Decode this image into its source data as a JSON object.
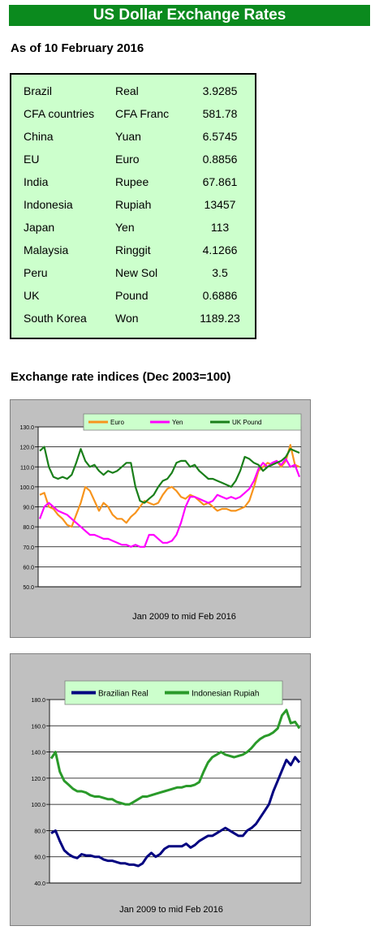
{
  "banner": "US Dollar Exchange Rates",
  "asof": "As of 10 February 2016",
  "rates": [
    {
      "country": "Brazil",
      "currency": "Real",
      "rate": "3.9285"
    },
    {
      "country": "CFA countries",
      "currency": "CFA Franc",
      "rate": "581.78"
    },
    {
      "country": "China",
      "currency": "Yuan",
      "rate": "6.5745"
    },
    {
      "country": "EU",
      "currency": "Euro",
      "rate": "0.8856"
    },
    {
      "country": "India",
      "currency": "Rupee",
      "rate": "67.861"
    },
    {
      "country": "Indonesia",
      "currency": "Rupiah",
      "rate": "13457"
    },
    {
      "country": "Japan",
      "currency": "Yen",
      "rate": "113"
    },
    {
      "country": "Malaysia",
      "currency": "Ringgit",
      "rate": "4.1266"
    },
    {
      "country": "Peru",
      "currency": "New Sol",
      "rate": "3.5"
    },
    {
      "country": "UK",
      "currency": "Pound",
      "rate": "0.6886"
    },
    {
      "country": "South Korea",
      "currency": "Won",
      "rate": "1189.23"
    }
  ],
  "section_title": "Exchange rate indices (Dec 2003=100)",
  "colors": {
    "euro": "#f7941d",
    "yen": "#ff00ff",
    "pound": "#1a7f1a",
    "real": "#000080",
    "rupiah": "#2a9a2a"
  },
  "chart_data": [
    {
      "type": "line",
      "caption": "Jan 2009 to mid Feb 2016",
      "ylim": [
        50,
        130
      ],
      "yticks": [
        "50.0",
        "60.0",
        "70.0",
        "80.0",
        "90.0",
        "100.0",
        "110.0",
        "120.0",
        "130.0"
      ],
      "grid": true,
      "legend": "top",
      "x_range": [
        "2009-01",
        "2016-02"
      ],
      "series": [
        {
          "name": "Euro",
          "values": [
            96,
            97,
            90,
            89,
            86,
            84,
            81,
            80,
            86,
            92,
            100,
            98,
            93,
            88,
            92,
            90,
            86,
            84,
            84,
            82,
            85,
            87,
            90,
            93,
            92,
            91,
            92,
            96,
            99,
            100,
            98,
            95,
            94,
            96,
            95,
            93,
            91,
            92,
            90,
            88,
            89,
            89,
            88,
            88,
            89,
            90,
            93,
            100,
            108,
            110,
            112,
            111,
            113,
            110,
            113,
            121,
            111,
            110
          ]
        },
        {
          "name": "Yen",
          "values": [
            84,
            90,
            92,
            90,
            88,
            87,
            86,
            84,
            82,
            80,
            78,
            76,
            76,
            75,
            74,
            74,
            73,
            72,
            71,
            71,
            70,
            71,
            70,
            70,
            76,
            76,
            74,
            72,
            72,
            73,
            76,
            82,
            90,
            95,
            95,
            94,
            93,
            92,
            93,
            96,
            95,
            94,
            95,
            94,
            95,
            97,
            99,
            103,
            109,
            112,
            110,
            112,
            113,
            111,
            114,
            110,
            111,
            105
          ]
        },
        {
          "name": "UK Pound",
          "values": [
            118,
            120,
            110,
            105,
            104,
            105,
            104,
            106,
            112,
            119,
            113,
            110,
            111,
            108,
            106,
            108,
            107,
            108,
            110,
            112,
            112,
            100,
            93,
            92,
            94,
            96,
            100,
            103,
            104,
            107,
            112,
            113,
            113,
            110,
            111,
            108,
            106,
            104,
            104,
            103,
            102,
            101,
            100,
            103,
            108,
            115,
            114,
            112,
            111,
            108,
            110,
            111,
            112,
            113,
            115,
            119,
            118,
            117
          ]
        }
      ]
    },
    {
      "type": "line",
      "caption": "Jan 2009 to mid Feb 2016",
      "ylim": [
        40,
        180
      ],
      "yticks": [
        "40.0",
        "60.0",
        "80.0",
        "100.0",
        "120.0",
        "140.0",
        "160.0",
        "180.0"
      ],
      "grid": true,
      "legend": "top",
      "x_range": [
        "2009-01",
        "2016-02"
      ],
      "series": [
        {
          "name": "Brazilian Real",
          "values": [
            78,
            80,
            72,
            65,
            62,
            60,
            59,
            62,
            61,
            61,
            60,
            60,
            58,
            57,
            57,
            56,
            55,
            55,
            54,
            54,
            53,
            55,
            60,
            63,
            60,
            62,
            66,
            68,
            68,
            68,
            68,
            70,
            67,
            69,
            72,
            74,
            76,
            76,
            78,
            80,
            82,
            80,
            78,
            76,
            76,
            80,
            82,
            85,
            90,
            95,
            100,
            110,
            118,
            126,
            134,
            130,
            136,
            132
          ]
        },
        {
          "name": "Indonesian Rupiah",
          "values": [
            135,
            140,
            125,
            118,
            115,
            112,
            110,
            110,
            109,
            107,
            106,
            106,
            105,
            104,
            104,
            102,
            101,
            100,
            100,
            102,
            104,
            106,
            106,
            107,
            108,
            109,
            110,
            111,
            112,
            113,
            113,
            114,
            114,
            115,
            117,
            125,
            132,
            136,
            138,
            140,
            138,
            137,
            136,
            137,
            138,
            140,
            143,
            147,
            150,
            152,
            153,
            155,
            158,
            168,
            172,
            162,
            163,
            158
          ]
        }
      ]
    }
  ]
}
